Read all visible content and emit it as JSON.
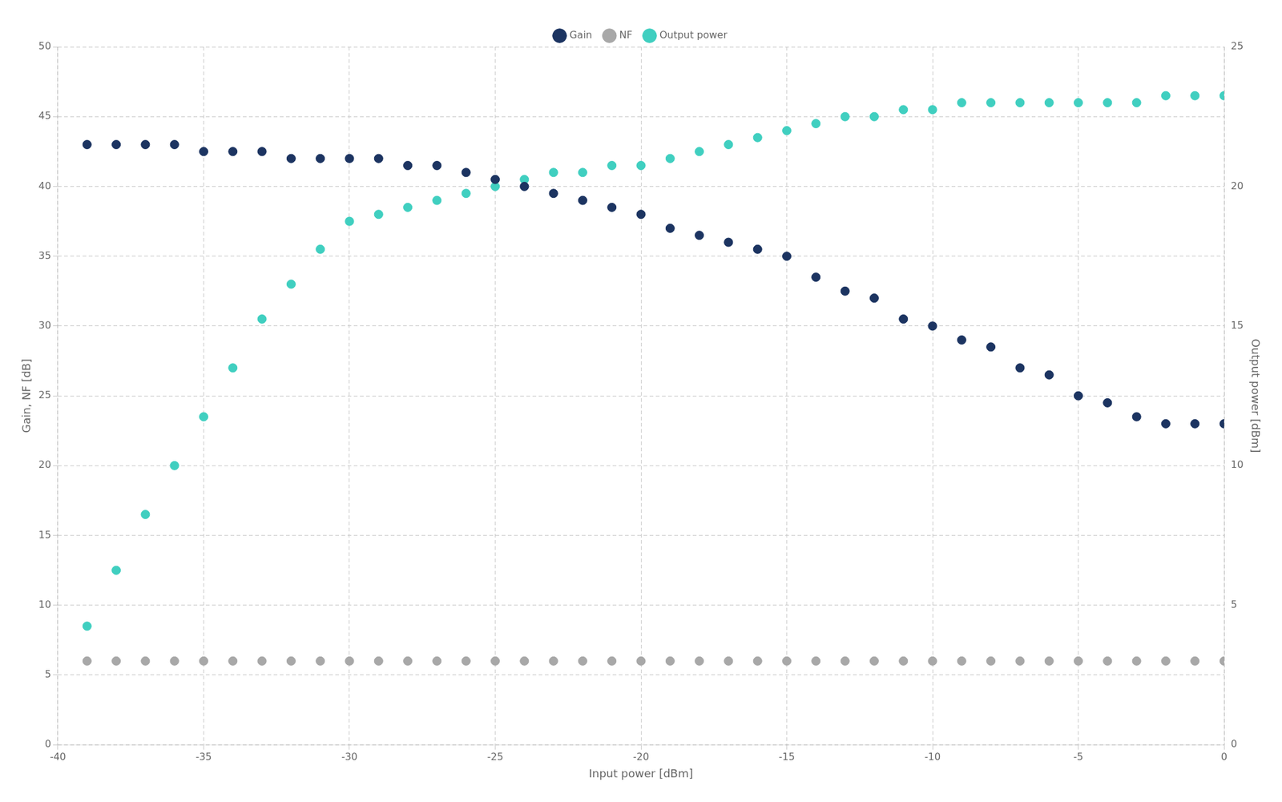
{
  "chart_data": {
    "type": "scatter",
    "xlabel": "Input power [dBm]",
    "ylabel": "Gain, NF [dB]",
    "y2label": "Output power [dBm]",
    "x": [
      -39,
      -38,
      -37,
      -36,
      -35,
      -34,
      -33,
      -32,
      -31,
      -30,
      -29,
      -28,
      -27,
      -26,
      -25,
      -24,
      -23,
      -22,
      -21,
      -20,
      -19,
      -18,
      -17,
      -16,
      -15,
      -14,
      -13,
      -12,
      -11,
      -10,
      -9,
      -8,
      -7,
      -6,
      -5,
      -4,
      -3,
      -2,
      -1,
      0
    ],
    "series": [
      {
        "name": "Gain",
        "color": "#1c3461",
        "values": [
          43.0,
          43.0,
          43.0,
          43.0,
          42.5,
          42.5,
          42.5,
          42.0,
          42.0,
          42.0,
          42.0,
          41.5,
          41.5,
          41.0,
          40.5,
          40.0,
          39.5,
          39.0,
          38.5,
          38.0,
          37.0,
          36.5,
          36.0,
          35.5,
          35.0,
          33.5,
          32.5,
          32.0,
          30.5,
          30.0,
          29.0,
          28.5,
          27.0,
          26.5,
          25.0,
          24.5,
          23.5,
          23.0,
          23.0,
          23.0
        ]
      },
      {
        "name": "NF",
        "color": "#a8a8a8",
        "values": [
          6.0,
          6.0,
          6.0,
          6.0,
          6.0,
          6.0,
          6.0,
          6.0,
          6.0,
          6.0,
          6.0,
          6.0,
          6.0,
          6.0,
          6.0,
          6.0,
          6.0,
          6.0,
          6.0,
          6.0,
          6.0,
          6.0,
          6.0,
          6.0,
          6.0,
          6.0,
          6.0,
          6.0,
          6.0,
          6.0,
          6.0,
          6.0,
          6.0,
          6.0,
          6.0,
          6.0,
          6.0,
          6.0,
          6.0,
          6.0
        ]
      },
      {
        "name": "Output power",
        "color": "#40cfc0",
        "axis": "y2",
        "values": [
          4.25,
          6.25,
          8.25,
          10.0,
          11.75,
          13.5,
          15.25,
          16.5,
          17.75,
          18.75,
          19.0,
          19.25,
          19.5,
          19.75,
          20.0,
          20.25,
          20.5,
          20.5,
          20.75,
          20.75,
          21.0,
          21.25,
          21.5,
          21.75,
          22.0,
          22.25,
          22.5,
          22.5,
          22.75,
          22.75,
          23.0,
          23.0,
          23.0,
          23.0,
          23.0,
          23.0,
          23.0,
          23.25,
          23.25,
          23.25
        ]
      }
    ],
    "xlim": [
      -40,
      0
    ],
    "xticks": [
      -40,
      -35,
      -30,
      -25,
      -20,
      -15,
      -10,
      -5,
      0
    ],
    "ylim": [
      0,
      50
    ],
    "yticks": [
      0,
      5,
      10,
      15,
      20,
      25,
      30,
      35,
      40,
      45,
      50
    ],
    "y2lim": [
      0,
      25
    ],
    "y2ticks": [
      0,
      5,
      10,
      15,
      20,
      25
    ],
    "marker": "circle",
    "grid": true,
    "legend": "top"
  }
}
